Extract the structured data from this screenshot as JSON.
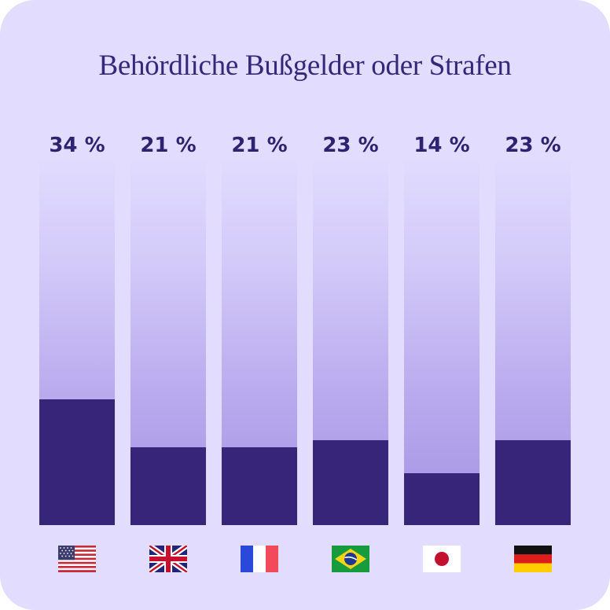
{
  "chart_data": {
    "type": "bar",
    "title": "Behördliche Bußgelder oder Strafen",
    "categories": [
      "us-flag-icon",
      "uk-flag-icon",
      "france-flag-icon",
      "brazil-flag-icon",
      "japan-flag-icon",
      "germany-flag-icon"
    ],
    "values": [
      34,
      21,
      21,
      23,
      14,
      23
    ],
    "value_labels": [
      "34 %",
      "21 %",
      "21 %",
      "23 %",
      "14 %",
      "23 %"
    ],
    "ylim": [
      0,
      100
    ],
    "grid": false,
    "colors": {
      "background": "#e2dcff",
      "bar_fill": "#37257a",
      "track_top": "#e2dcff",
      "track_bottom": "#a393e3",
      "text": "#35277a"
    }
  }
}
